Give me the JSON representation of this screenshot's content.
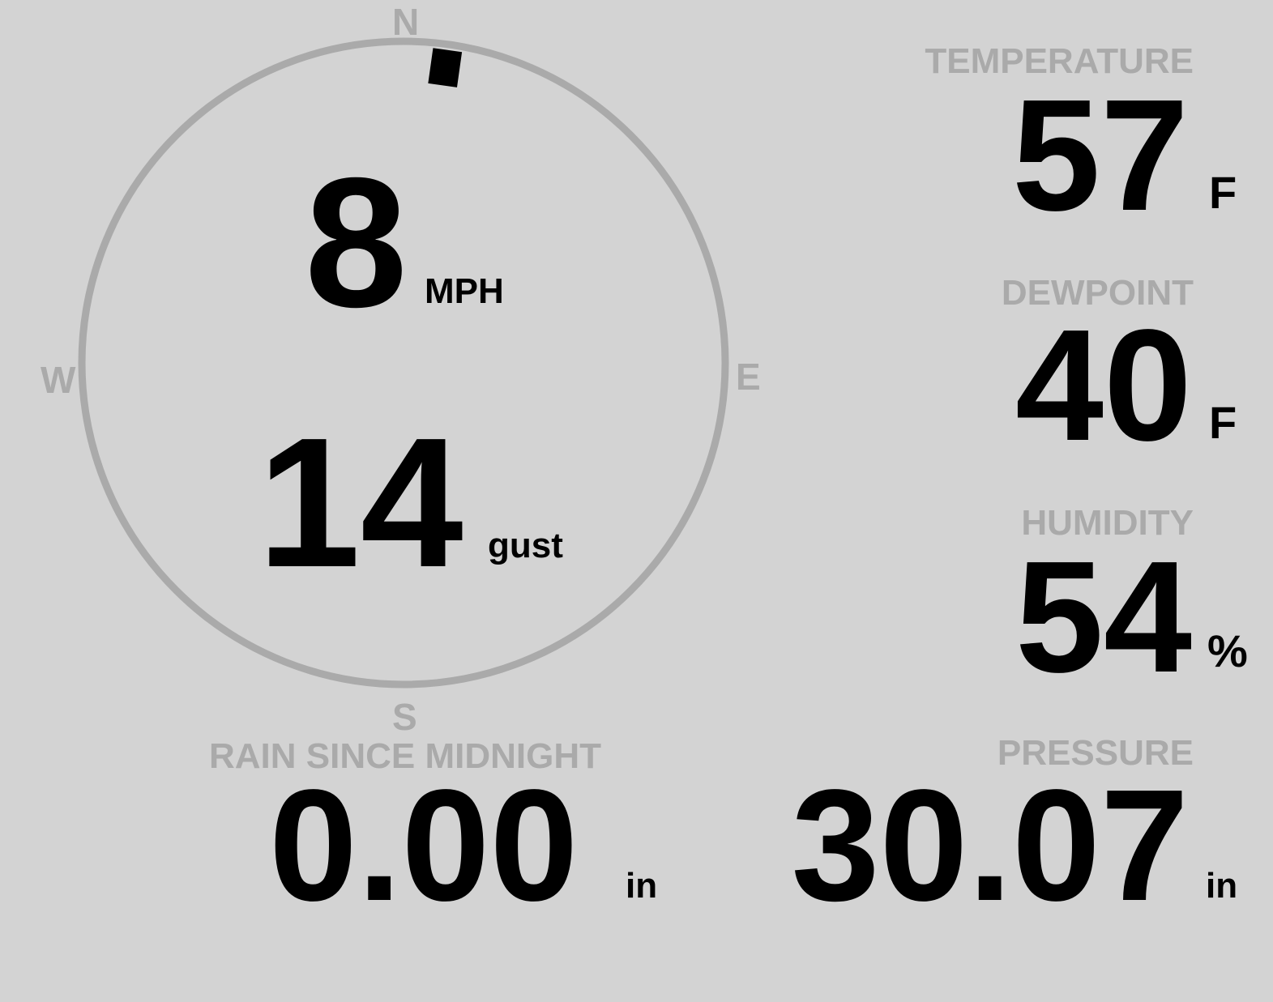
{
  "colors": {
    "background": "#d3d3d3",
    "muted": "#aaaaaa",
    "value": "#000000"
  },
  "wind": {
    "direction_degrees": 8,
    "speed": "8",
    "speed_unit": "MPH",
    "gust": "14",
    "gust_unit": "gust",
    "compass": {
      "n": "N",
      "e": "E",
      "s": "S",
      "w": "W"
    }
  },
  "temperature": {
    "label": "TEMPERATURE",
    "value": "57",
    "unit": "F"
  },
  "dewpoint": {
    "label": "DEWPOINT",
    "value": "40",
    "unit": "F"
  },
  "humidity": {
    "label": "HUMIDITY",
    "value": "54",
    "unit": "%"
  },
  "rain": {
    "label": "RAIN SINCE MIDNIGHT",
    "value": "0.00",
    "unit": "in"
  },
  "pressure": {
    "label": "PRESSURE",
    "value": "30.07",
    "unit": "in"
  }
}
